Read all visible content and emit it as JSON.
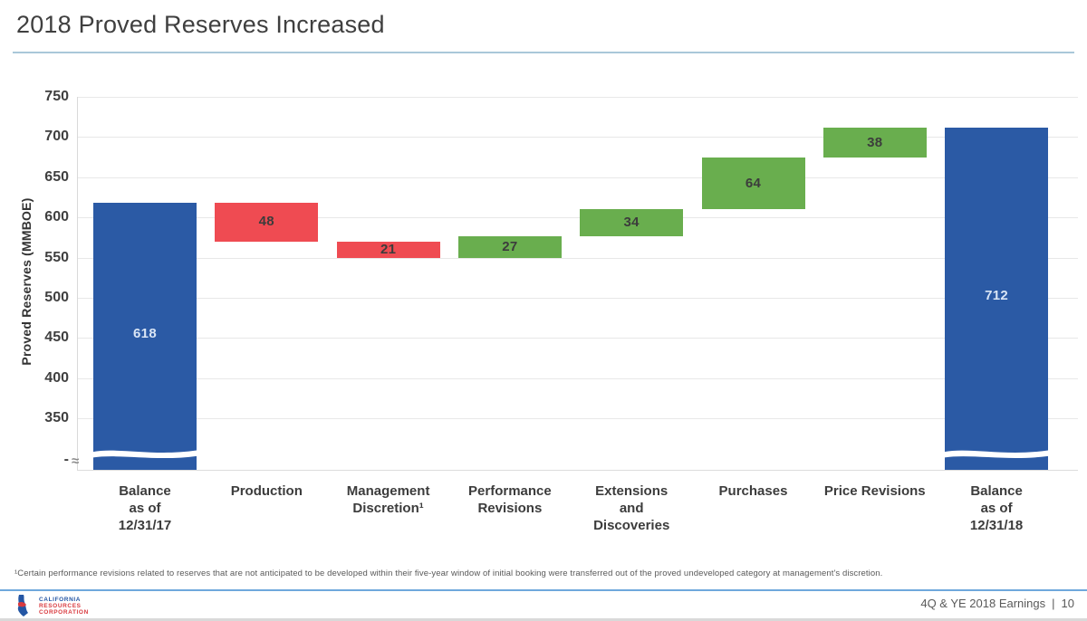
{
  "slide": {
    "title": "2018 Proved Reserves Increased",
    "footnote": "¹Certain performance revisions related to reserves that are not anticipated to be developed within their five-year window of initial booking were transferred out of the proved undeveloped category at management's discretion.",
    "footer": {
      "logo_lines": [
        "CALIFORNIA",
        "RESOURCES",
        "CORPORATION"
      ],
      "page_label": "4Q & YE 2018 Earnings",
      "separator": "|",
      "page_number": "10"
    }
  },
  "chart_data": {
    "type": "bar",
    "subtype": "waterfall",
    "title": "2018 Proved Reserves Increased",
    "xlabel": "",
    "ylabel": "Proved Reserves (MMBOE)",
    "yticks": [
      750,
      700,
      650,
      600,
      550,
      500,
      450,
      400,
      350
    ],
    "ylim": [
      350,
      750
    ],
    "grid": true,
    "axis_break": true,
    "axis_break_symbol": "≈",
    "baseline_tick_label": "-",
    "colors": {
      "total": "#2b5aa5",
      "decrease": "#ef4b52",
      "increase": "#69ae4e",
      "label_dark": "#3c3c3c",
      "label_light": "#d9e5f5",
      "gridline": "#e8e8e8"
    },
    "bars": [
      {
        "category_lines": [
          "Balance",
          "as of",
          "12/31/17"
        ],
        "display": "618",
        "value": 618,
        "kind": "total",
        "start": null,
        "end": 618
      },
      {
        "category_lines": [
          "Production"
        ],
        "display": "48",
        "value": 48,
        "kind": "decrease",
        "start": 618,
        "end": 570
      },
      {
        "category_lines": [
          "Management",
          "Discretion¹"
        ],
        "display": "21",
        "value": 21,
        "kind": "decrease",
        "start": 570,
        "end": 549
      },
      {
        "category_lines": [
          "Performance",
          "Revisions"
        ],
        "display": "27",
        "value": 27,
        "kind": "increase",
        "start": 549,
        "end": 576
      },
      {
        "category_lines": [
          "Extensions",
          "and",
          "Discoveries"
        ],
        "display": "34",
        "value": 34,
        "kind": "increase",
        "start": 576,
        "end": 610
      },
      {
        "category_lines": [
          "Purchases"
        ],
        "display": "64",
        "value": 64,
        "kind": "increase",
        "start": 610,
        "end": 674
      },
      {
        "category_lines": [
          "Price Revisions"
        ],
        "display": "38",
        "value": 38,
        "kind": "increase",
        "start": 674,
        "end": 712
      },
      {
        "category_lines": [
          "Balance",
          "as of",
          "12/31/18"
        ],
        "display": "712",
        "value": 712,
        "kind": "total",
        "start": null,
        "end": 712
      }
    ]
  }
}
